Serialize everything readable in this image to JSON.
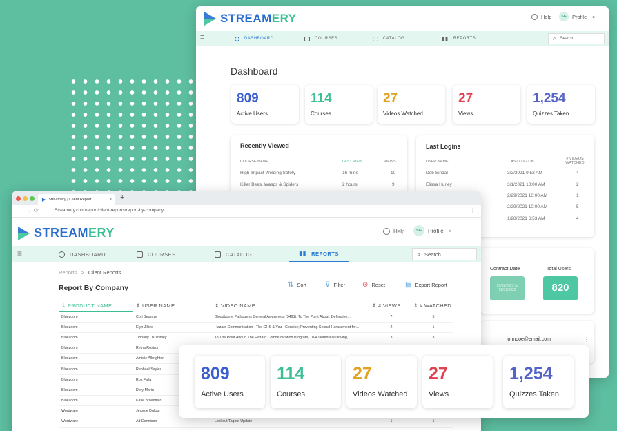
{
  "colors": {
    "background": "#5dbea0",
    "brand_blue": "#2a6fcf",
    "brand_teal": "#3cbf95",
    "nav_bg": "#e3f6ef"
  },
  "brand": {
    "part1": "STREAM",
    "part2": "ERY"
  },
  "back_window": {
    "help": "Help",
    "avatar": "SG",
    "profile": "Profile",
    "nav": [
      "DASHBOARD",
      "COURSES",
      "CATALOG",
      "REPORTS"
    ],
    "search_placeholder": "Search",
    "title": "Dashboard",
    "stats": [
      {
        "value": "809",
        "label": "Active Users"
      },
      {
        "value": "114",
        "label": "Courses"
      },
      {
        "value": "27",
        "label": "Videos Watched"
      },
      {
        "value": "27",
        "label": "Views"
      },
      {
        "value": "1,254",
        "label": "Quizzes Taken"
      }
    ],
    "recently_viewed": {
      "title": "Recently Viewed",
      "headers": [
        "COURSE NAME",
        "LAST VIEW",
        "VIEWS"
      ],
      "rows": [
        [
          "High Impact Welding Safety",
          "16 mins",
          "10"
        ],
        [
          "Killer Bees, Wasps & Spiders",
          "2 hours",
          "9"
        ]
      ]
    },
    "last_logins": {
      "title": "Last Logins",
      "headers": [
        "USER NAME",
        "LAST LOG ON",
        "# VIDEOS WATCHED"
      ],
      "rows": [
        [
          "Deb Sindal",
          "3/2/2021 9:52 AM",
          "4"
        ],
        [
          "Elissa Hurley",
          "3/1/2021 10:00 AM",
          "2"
        ],
        [
          "",
          "2/29/2021 10:00 AM",
          "1"
        ],
        [
          "",
          "2/29/2021 10:00 AM",
          "5"
        ],
        [
          "",
          "1/28/2021 6:53 AM",
          "4"
        ]
      ]
    },
    "contract": {
      "date_label": "Contract Date",
      "date_value": "01/02/2022 to 12/31/2022",
      "users_label": "Total Users",
      "users_value": "820"
    },
    "email": "johndoe@email.com"
  },
  "front_window": {
    "tab_title": "Streamery | Client Report",
    "url": "Streamery.com/report/client-reports/report-by-company",
    "help": "Help",
    "avatar": "SG",
    "profile": "Profile",
    "nav": [
      "DASHBOARD",
      "COURSES",
      "CATALOG",
      "REPORTS"
    ],
    "search_placeholder": "Search",
    "breadcrumb": [
      "Reports",
      "Client Reports"
    ],
    "page_title": "Report By Company",
    "tools": [
      "Sort",
      "Filter",
      "Reset",
      "Export Report"
    ],
    "table": {
      "headers": [
        "PRODUCT NAME",
        "USER NAME",
        "VIDEO NAME",
        "# VIEWS",
        "# WATCHED"
      ],
      "rows": [
        [
          "Bluezoom",
          "Cori Segrave",
          "Bloodborne Pathogens General Awareness (3491); To The Point About: Defensive...",
          "7",
          "5"
        ],
        [
          "Bluezoom",
          "Elyn Jillies",
          "Hazard Communication - The GHS & You - Concise; Preventing Sexual Harassment for...",
          "2",
          "1"
        ],
        [
          "Bluezoom",
          "Tiphany O'Crowley",
          "To The Point About: The Hazard Communication Program, 10-4 Defensive Driving,...",
          "3",
          "3"
        ],
        [
          "Bluezoom",
          "Reina Rostron",
          "",
          "",
          ""
        ],
        [
          "Bluezoom",
          "Amidie Albrighton",
          "",
          "",
          ""
        ],
        [
          "Bluezoom",
          "Raphael Sayles",
          "",
          "",
          ""
        ],
        [
          "Bluezoom",
          "Ros Falla",
          "",
          "",
          ""
        ],
        [
          "Bluezoom",
          "Dory Morin",
          "",
          "",
          ""
        ],
        [
          "Bluezoom",
          "Katie Broadfield",
          "",
          "",
          ""
        ],
        [
          "Wordware",
          "Jerome Dufour",
          "",
          "",
          ""
        ],
        [
          "Wordware",
          "Ad Donnison",
          "Lockout Tagout Update",
          "1",
          "1"
        ]
      ]
    }
  },
  "overlay_stats": [
    {
      "value": "809",
      "label": "Active Users"
    },
    {
      "value": "114",
      "label": "Courses"
    },
    {
      "value": "27",
      "label": "Videos Watched"
    },
    {
      "value": "27",
      "label": "Views"
    },
    {
      "value": "1,254",
      "label": "Quizzes Taken"
    }
  ]
}
